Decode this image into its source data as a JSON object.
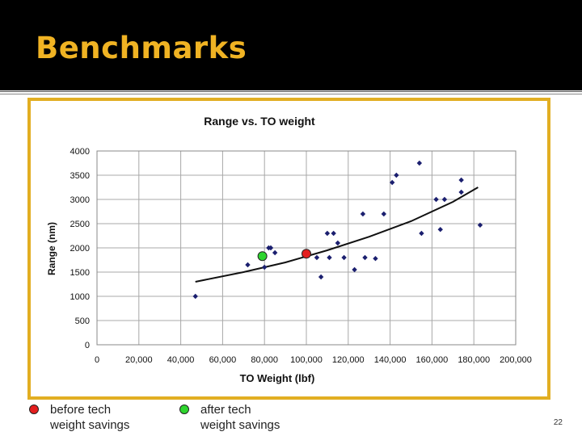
{
  "slide": {
    "title": "Benchmarks",
    "page_number": "22"
  },
  "colors": {
    "title": "#f0b323",
    "frame": "#e2ae22",
    "points": "#1b1f6f",
    "before": "#e41e1e",
    "after": "#2ed52e"
  },
  "legend": [
    {
      "label": "before tech\nweight savings",
      "color": "#e41e1e"
    },
    {
      "label": "after tech\nweight savings",
      "color": "#2ed52e"
    }
  ],
  "chart_data": {
    "type": "scatter",
    "title": "Range vs. TO weight",
    "xlabel": "TO Weight (lbf)",
    "ylabel": "Range (nm)",
    "xlim": [
      0,
      200000
    ],
    "ylim": [
      0,
      4000
    ],
    "x_ticks": [
      "0",
      "20,000",
      "40,000",
      "60,000",
      "80,000",
      "100,000",
      "120,000",
      "140,000",
      "160,000",
      "180,000",
      "200,000"
    ],
    "y_ticks": [
      "0",
      "500",
      "1000",
      "1500",
      "2000",
      "2500",
      "3000",
      "3500",
      "4000"
    ],
    "grid": true,
    "series": [
      {
        "marker": "diamond",
        "color": "#1b1f6f",
        "x": [
          47000,
          72000,
          80000,
          82000,
          83000,
          85000,
          105000,
          107000,
          110000,
          111000,
          113000,
          115000,
          118000,
          123000,
          127000,
          128000,
          133000,
          137000,
          141000,
          143000,
          154000,
          155000,
          162000,
          164000,
          166000,
          174000,
          174000,
          183000
        ],
        "y": [
          1000,
          1650,
          1600,
          2000,
          2000,
          1900,
          1800,
          1400,
          2300,
          1800,
          2300,
          2100,
          1800,
          1550,
          2700,
          1800,
          1780,
          2700,
          3350,
          3500,
          3750,
          2300,
          3000,
          2380,
          3000,
          3400,
          3150,
          2470
        ]
      },
      {
        "marker": "circle",
        "color": "#e41e1e",
        "x": [
          100000
        ],
        "y": [
          1880
        ]
      },
      {
        "marker": "circle",
        "color": "#2ed52e",
        "x": [
          79000
        ],
        "y": [
          1830
        ]
      }
    ],
    "trendline": {
      "x": [
        47000,
        70000,
        90000,
        110000,
        130000,
        150000,
        170000,
        182000
      ],
      "y": [
        1300,
        1500,
        1700,
        1950,
        2230,
        2550,
        2950,
        3250
      ]
    }
  }
}
